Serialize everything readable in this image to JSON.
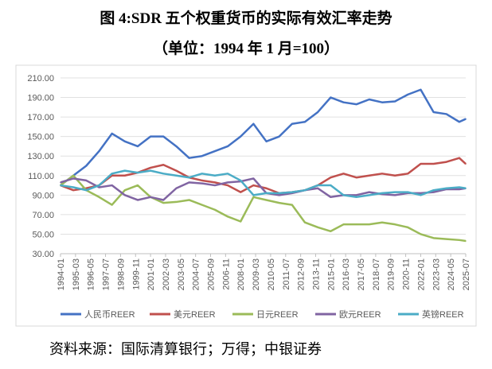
{
  "title": "图 4:SDR 五个权重货币的实际有效汇率走势",
  "subtitle": "（单位：1994 年 1 月=100）",
  "source": "资料来源：国际清算银行；万得；中银证券",
  "chart_data": {
    "type": "line",
    "title": "图 4:SDR 五个权重货币的实际有效汇率走势",
    "subtitle": "（单位：1994 年 1 月=100）",
    "ylim": [
      30,
      210
    ],
    "yticks": [
      "30.00",
      "50.00",
      "70.00",
      "90.00",
      "110.00",
      "130.00",
      "150.00",
      "170.00",
      "190.00",
      "210.00"
    ],
    "xticks": [
      "1994-01",
      "1995-03",
      "1996-05",
      "1997-07",
      "1998-09",
      "1999-11",
      "2001-01",
      "2002-03",
      "2003-05",
      "2004-07",
      "2005-09",
      "2006-11",
      "2008-01",
      "2009-03",
      "2010-05",
      "2011-07",
      "2012-09",
      "2013-11",
      "2015-01",
      "2016-03",
      "2017-05",
      "2018-07",
      "2019-09",
      "2020-11",
      "2022-01",
      "2023-03",
      "2024-05",
      "2025-07"
    ],
    "grid": true,
    "legend": "bottom",
    "x": [
      "1994-01",
      "1995-01",
      "1996-01",
      "1997-01",
      "1998-01",
      "1999-01",
      "2000-01",
      "2001-01",
      "2002-01",
      "2003-01",
      "2004-01",
      "2005-01",
      "2006-01",
      "2007-01",
      "2008-01",
      "2009-01",
      "2010-01",
      "2011-01",
      "2012-01",
      "2013-01",
      "2014-01",
      "2015-01",
      "2016-01",
      "2017-01",
      "2018-01",
      "2019-01",
      "2020-01",
      "2021-01",
      "2022-01",
      "2023-01",
      "2024-01",
      "2025-01",
      "2025-07"
    ],
    "series": [
      {
        "name": "人民币REER",
        "color": "#4472C4",
        "values": [
          100,
          110,
          120,
          135,
          153,
          145,
          140,
          150,
          150,
          140,
          128,
          130,
          135,
          140,
          150,
          163,
          145,
          150,
          163,
          165,
          175,
          190,
          185,
          183,
          188,
          185,
          186,
          193,
          198,
          175,
          173,
          165,
          168
        ]
      },
      {
        "name": "美元REER",
        "color": "#C0504D",
        "values": [
          100,
          95,
          97,
          100,
          110,
          110,
          113,
          118,
          121,
          115,
          108,
          105,
          103,
          100,
          93,
          100,
          97,
          92,
          93,
          95,
          100,
          108,
          112,
          108,
          110,
          112,
          110,
          112,
          122,
          122,
          124,
          128,
          122
        ]
      },
      {
        "name": "日元REER",
        "color": "#9BBB59",
        "values": [
          100,
          110,
          95,
          88,
          80,
          95,
          100,
          88,
          82,
          83,
          85,
          80,
          75,
          68,
          63,
          88,
          85,
          82,
          80,
          62,
          57,
          53,
          60,
          60,
          60,
          62,
          60,
          57,
          50,
          46,
          45,
          44,
          43
        ]
      },
      {
        "name": "欧元REER",
        "color": "#8064A2",
        "values": [
          103,
          107,
          105,
          98,
          100,
          90,
          85,
          88,
          85,
          97,
          103,
          102,
          100,
          103,
          104,
          107,
          92,
          90,
          92,
          95,
          97,
          88,
          90,
          90,
          93,
          91,
          90,
          92,
          92,
          93,
          96,
          96,
          97
        ]
      },
      {
        "name": "英镑REER",
        "color": "#4BACC6",
        "values": [
          100,
          98,
          95,
          100,
          112,
          115,
          113,
          115,
          112,
          110,
          108,
          112,
          110,
          112,
          105,
          90,
          92,
          92,
          93,
          95,
          100,
          100,
          90,
          88,
          90,
          92,
          93,
          93,
          90,
          95,
          97,
          98,
          97
        ]
      }
    ]
  }
}
